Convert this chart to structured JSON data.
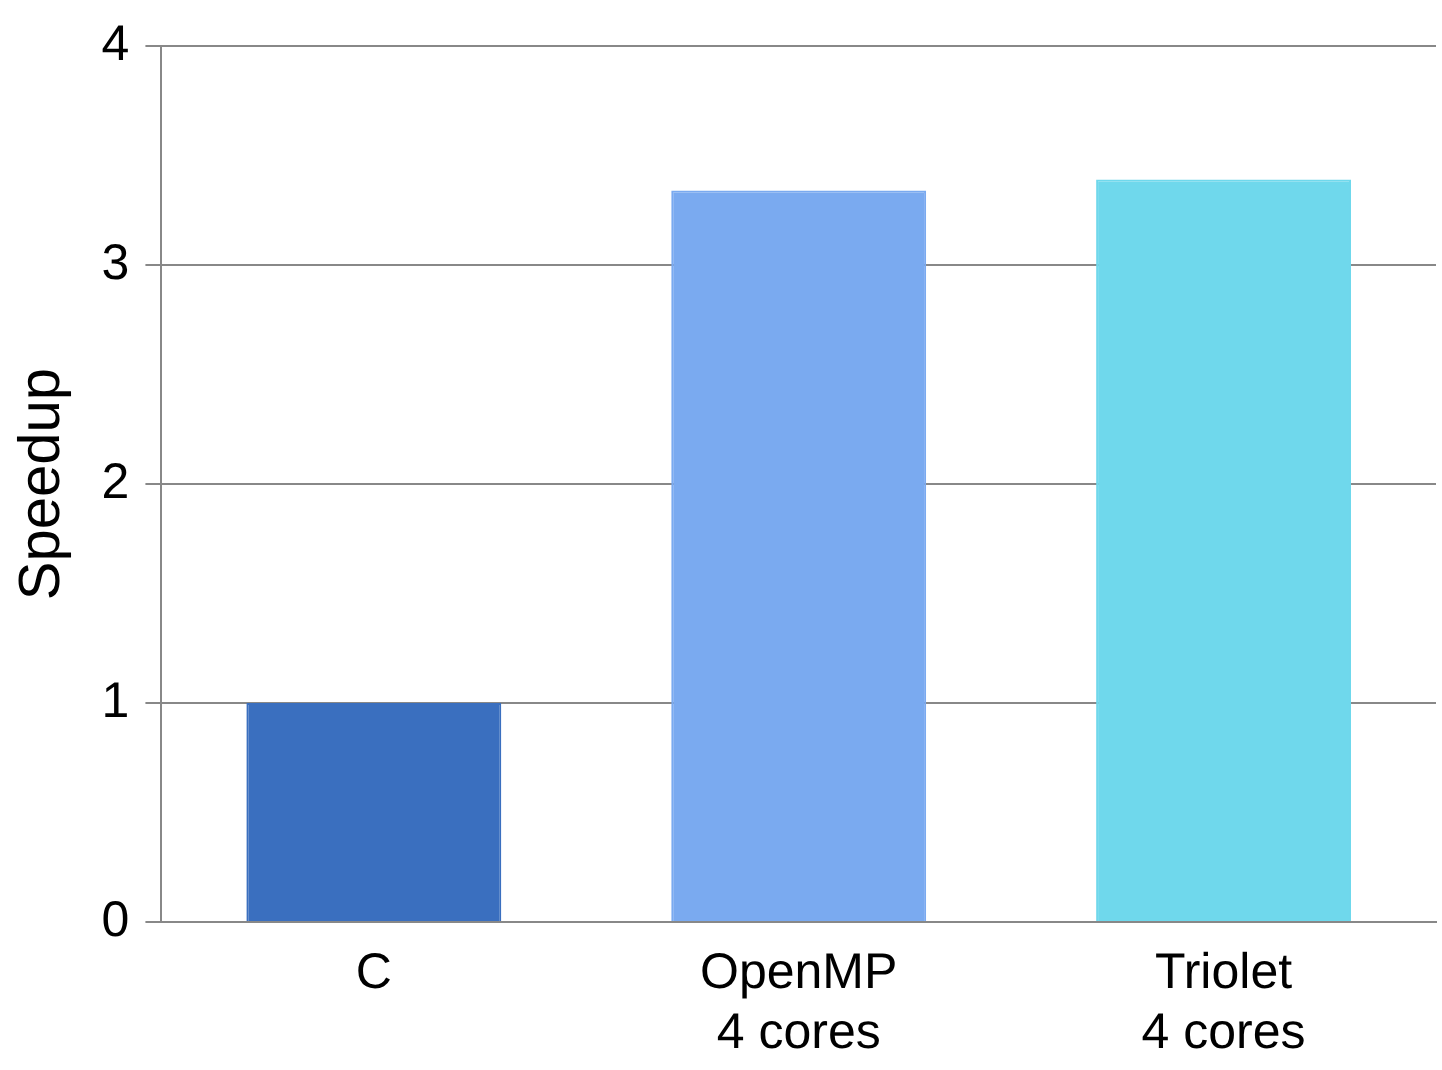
{
  "chart_data": {
    "type": "bar",
    "ylabel": "Speedup",
    "categories": [
      "C",
      "OpenMP\n4 cores",
      "Triolet\n4 cores"
    ],
    "values": [
      1,
      3.34,
      3.39
    ],
    "colors": [
      "#3a6fbf",
      "#7aaaf0",
      "#6fd8ec"
    ],
    "ylim": [
      0,
      4
    ],
    "yticks": [
      0,
      1,
      2,
      3,
      4
    ],
    "grid": "y"
  }
}
